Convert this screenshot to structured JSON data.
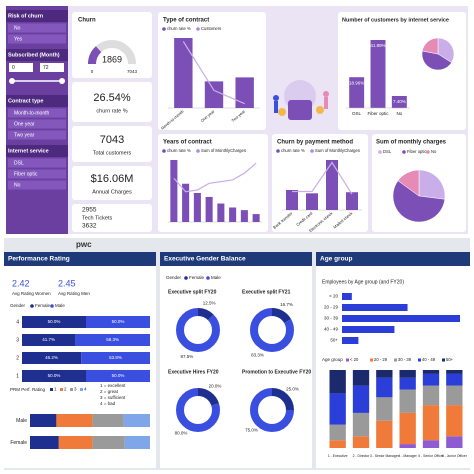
{
  "top": {
    "sidebar": [
      {
        "title": "Risk of churn",
        "options": [
          "No",
          "Yes"
        ]
      },
      {
        "title": "Subscribed (Month)",
        "range": [
          0,
          72
        ]
      },
      {
        "title": "Contract type",
        "options": [
          "Month-to-month",
          "One year",
          "Two year"
        ]
      },
      {
        "title": "Internet service",
        "options": [
          "DSL",
          "Fiber optic",
          "No"
        ]
      }
    ],
    "churn_card": {
      "title": "Churn",
      "value": 1869,
      "min": 0,
      "max": 7043
    },
    "kpis": [
      {
        "value": "26.54%",
        "label": "churn rate %"
      },
      {
        "value": "7043",
        "label": "Total customers"
      },
      {
        "value": "$16.06M",
        "label": "Annual Charges"
      },
      {
        "value": "2955",
        "label": "Tech Tickets",
        "second": "3632"
      }
    ],
    "contract": {
      "title": "Type of contract",
      "legend": [
        "churn rate %",
        "Customers"
      ],
      "categories": [
        "Month-to-month",
        "One year",
        "Two year"
      ],
      "bars": [
        3875,
        1473,
        1695
      ],
      "line": [
        42.7,
        11.3,
        2.8
      ]
    },
    "internet": {
      "title": "Number of customers by internet service",
      "categories": [
        "DSL",
        "Fiber optic",
        "No"
      ],
      "values": [
        18.96,
        41.89,
        7.4
      ],
      "value_labels": [
        "18.96%",
        "41.89%",
        "7.40%"
      ],
      "pie": [
        34,
        44,
        22
      ],
      "colors": [
        "#c9aee9",
        "#7b4fb5",
        "#e58bb5"
      ]
    },
    "years": {
      "title": "Years of contract",
      "legend": [
        "churn rate %",
        "Sum of MonthlyCharges"
      ],
      "bars": [
        47,
        29,
        22,
        19,
        14,
        11,
        9,
        6
      ],
      "line": [
        260,
        180,
        190,
        230,
        240,
        250,
        290,
        350
      ]
    },
    "payment": {
      "title": "Churn by payment method",
      "legend": [
        "churn rate %",
        "Sum of MonthlyCharges"
      ],
      "categories": [
        "Bank transfer",
        "Credit card",
        "Electronic check",
        "Mailed check"
      ],
      "bars": [
        18,
        15,
        45,
        16
      ],
      "line": [
        0.35,
        0.35,
        0.9,
        0.3
      ]
    },
    "monthly": {
      "title": "Sum of monthly charges",
      "legend": [
        "DSL",
        "Fiber optic",
        "No"
      ],
      "values": [
        27,
        58,
        15
      ],
      "colors": [
        "#c9aee9",
        "#7b4fb5",
        "#e58bb5"
      ]
    }
  },
  "bottom": {
    "brand": "pwc",
    "performance": {
      "title": "Performance Rating",
      "averages": [
        {
          "value": "2.42",
          "label": "Avg Rating Women"
        },
        {
          "value": "2.45",
          "label": "Avg Rating Men"
        }
      ],
      "gender_chart": {
        "legend_title": "Gender",
        "categories": [
          "4",
          "3",
          "2",
          "1"
        ],
        "series": [
          {
            "name": "Female",
            "color": "#1f2f8f",
            "values": [
              50,
              41.7,
              46.2,
              50
            ],
            "value_labels": [
              "50.0%",
              "41.7%",
              "46.2%",
              "50.0%"
            ]
          },
          {
            "name": "Male",
            "color": "#3a4fe0",
            "values": [
              50,
              58.3,
              53.8,
              50
            ],
            "value_labels": [
              "50.0%",
              "58.3%",
              "53.8%",
              "50.0%"
            ]
          }
        ]
      },
      "rating_chart": {
        "legend_title": "PRM Perf. Rating",
        "notes": [
          "1 = excellent",
          "2 = great",
          "3 = sufficient",
          "4 = bad"
        ],
        "categories": [
          "Male",
          "Female"
        ],
        "series": [
          {
            "name": "1",
            "color": "#1f2f8f",
            "values": [
              22,
              24
            ]
          },
          {
            "name": "2",
            "color": "#f07a3a",
            "values": [
              30,
              28
            ]
          },
          {
            "name": "3",
            "color": "#9a9a9a",
            "values": [
              26,
              27
            ]
          },
          {
            "name": "4",
            "color": "#7fa6e8",
            "values": [
              22,
              21
            ]
          }
        ]
      }
    },
    "gender": {
      "title": "Executive Gender Balance",
      "legend_title": "Gender",
      "legend": [
        {
          "name": "Female",
          "color": "#1f2f8f"
        },
        {
          "name": "Male",
          "color": "#3a4fe0"
        }
      ],
      "donuts": [
        {
          "title": "Executive split FY20",
          "values": [
            12.5,
            87.5
          ],
          "value_labels": [
            "12.5%",
            "87.5%"
          ]
        },
        {
          "title": "Executive split FY21",
          "values": [
            16.7,
            83.3
          ],
          "value_labels": [
            "16.7%",
            "83.3%"
          ]
        },
        {
          "title": "Executive Hires FY20",
          "values": [
            20.0,
            80.0
          ],
          "value_labels": [
            "20.0%",
            "80.0%"
          ]
        },
        {
          "title": "Promotion to Executive FY20",
          "values": [
            25.0,
            75.0
          ],
          "value_labels": [
            "25.0%",
            "75.0%"
          ]
        }
      ]
    },
    "age": {
      "title": "Age group",
      "bar_chart": {
        "title": "Employees by Age group (and FY20)",
        "categories": [
          "< 20",
          "20 - 29",
          "30 - 39",
          "40 - 49",
          "50+"
        ],
        "values": [
          3,
          20,
          36,
          16,
          5
        ],
        "color": "#2b3fd8"
      },
      "stacked": {
        "legend_title": "Age group",
        "categories": [
          "1 - Executive",
          "2 - Director",
          "3 - Senior Manager",
          "4 - Manager",
          "5 - Senior Officer",
          "6 - Junior Officer"
        ],
        "series": [
          {
            "name": "< 20",
            "color": "#8e5bd1",
            "values": [
              0,
              0,
              0,
              5,
              10,
              15
            ]
          },
          {
            "name": "20 - 29",
            "color": "#f07a3a",
            "values": [
              10,
              15,
              35,
              40,
              45,
              40
            ]
          },
          {
            "name": "30 - 39",
            "color": "#9a9a9a",
            "values": [
              20,
              30,
              30,
              30,
              25,
              25
            ]
          },
          {
            "name": "40 - 49",
            "color": "#2b3fd8",
            "values": [
              40,
              35,
              25,
              15,
              15,
              15
            ]
          },
          {
            "name": "50+",
            "color": "#1a2a6c",
            "values": [
              30,
              20,
              10,
              10,
              5,
              5
            ]
          }
        ]
      }
    }
  }
}
